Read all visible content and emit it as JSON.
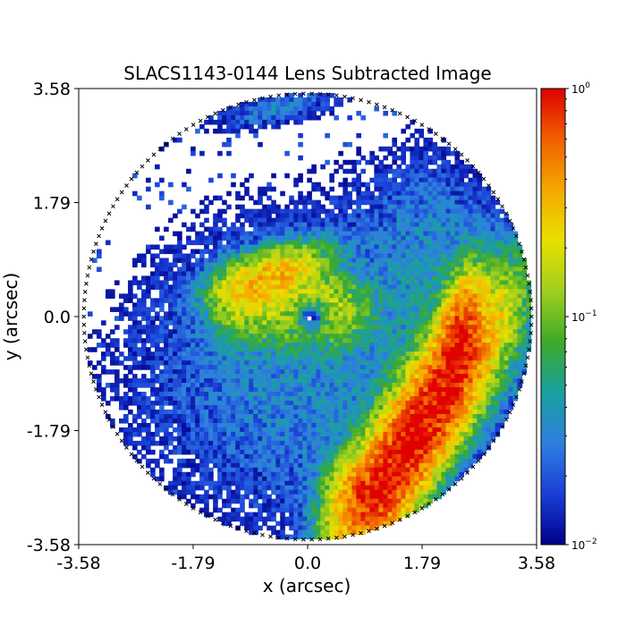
{
  "chart_data": {
    "type": "heatmap",
    "title": "SLACS1143-0144 Lens Subtracted Image",
    "xlabel": "x (arcsec)",
    "ylabel": "y (arcsec)",
    "xlim": [
      -3.58,
      3.58
    ],
    "ylim": [
      -3.58,
      3.58
    ],
    "x_ticks": [
      -3.58,
      -1.79,
      0.0,
      1.79,
      3.58
    ],
    "y_ticks": [
      -3.58,
      -1.79,
      0.0,
      1.79,
      3.58
    ],
    "x_tick_labels": [
      "-3.58",
      "-1.79",
      "0.0",
      "1.79",
      "3.58"
    ],
    "y_tick_labels": [
      "-3.58",
      "-1.79",
      "0.0",
      "1.79",
      "3.58"
    ],
    "mask_radius_arcsec": 3.5,
    "colorbar": {
      "scale": "log",
      "range": [
        0.01,
        1
      ],
      "tick_labels": [
        {
          "value": 1,
          "base": "10",
          "exp": "0"
        },
        {
          "value": 0.1,
          "base": "10",
          "exp": "−1"
        },
        {
          "value": 0.01,
          "base": "10",
          "exp": "−2"
        }
      ],
      "colormap": [
        "#00008b",
        "#1a3fd6",
        "#2f7fe0",
        "#19a0a0",
        "#3daa2a",
        "#9fcf1e",
        "#e8e000",
        "#f6a800",
        "#f06000",
        "#e00000"
      ]
    },
    "features": [
      {
        "name": "inner arc",
        "x": [
          -1.3,
          0.5
        ],
        "y": [
          -0.3,
          0.9
        ],
        "peak": 0.35
      },
      {
        "name": "bright counter-arc",
        "x": [
          0.8,
          2.5
        ],
        "y": [
          -3.2,
          0.2
        ],
        "peak": 1.0
      },
      {
        "name": "faint halo",
        "x": [
          -2.2,
          2.6
        ],
        "y": [
          -3.4,
          2.4
        ],
        "peak": 0.04
      }
    ],
    "grid": false
  }
}
